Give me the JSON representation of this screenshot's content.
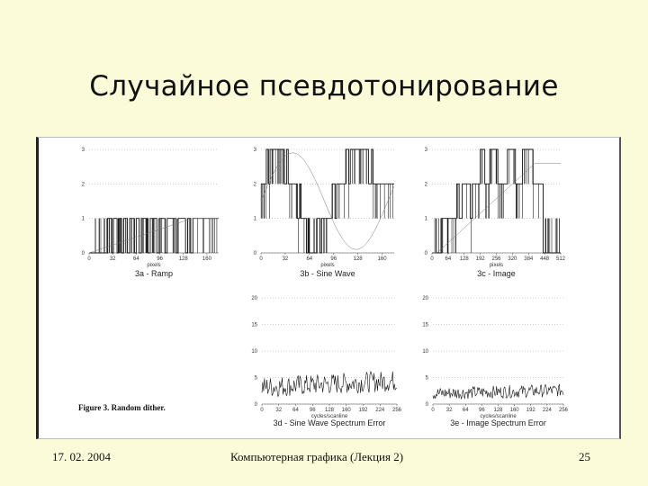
{
  "slide": {
    "title": "Случайное псевдотонирование",
    "footer": {
      "date": "17. 02. 2004",
      "course": "Компьютерная графика (Лекция 2)",
      "page": "25"
    }
  },
  "figure": {
    "caption": "Figure 3. Random dither."
  },
  "chart_data": [
    {
      "type": "line",
      "title": "3a - Ramp",
      "xlabel": "pixels",
      "xticks": [
        "0",
        "32",
        "64",
        "96",
        "128",
        "160"
      ],
      "yticks": [
        "0",
        "1",
        "2",
        "3"
      ],
      "xlim": [
        0,
        176
      ],
      "ylim": [
        0,
        3
      ],
      "series": [
        {
          "values": [
            [
              0,
              0
            ],
            [
              24,
              0
            ],
            [
              25,
              1
            ],
            [
              30,
              1
            ],
            [
              31,
              0
            ],
            [
              33,
              1
            ],
            [
              38,
              0
            ],
            [
              40,
              1
            ],
            [
              44,
              0
            ],
            [
              47,
              1
            ],
            [
              52,
              0
            ],
            [
              55,
              1
            ],
            [
              61,
              0
            ],
            [
              64,
              1
            ],
            [
              68,
              0
            ],
            [
              71,
              1
            ],
            [
              80,
              0
            ],
            [
              83,
              1
            ],
            [
              92,
              0
            ],
            [
              95,
              1
            ],
            [
              103,
              0
            ],
            [
              106,
              1
            ],
            [
              118,
              0
            ],
            [
              121,
              1
            ],
            [
              131,
              0
            ],
            [
              134,
              1
            ],
            [
              138,
              0
            ],
            [
              141,
              1
            ],
            [
              176,
              1
            ]
          ]
        }
      ]
    },
    {
      "type": "line",
      "title": "3b - Sine Wave",
      "xlabel": "pixels",
      "xticks": [
        "0",
        "32",
        "64",
        "96",
        "128",
        "160"
      ],
      "yticks": [
        "0",
        "1",
        "2",
        "3"
      ],
      "xlim": [
        0,
        176
      ],
      "ylim": [
        0,
        3
      ],
      "series": [
        {
          "values": [
            [
              0,
              2
            ],
            [
              6,
              2
            ],
            [
              7,
              3
            ],
            [
              10,
              2
            ],
            [
              12,
              3
            ],
            [
              30,
              3
            ],
            [
              31,
              2
            ],
            [
              34,
              3
            ],
            [
              36,
              2
            ],
            [
              46,
              2
            ],
            [
              48,
              1
            ],
            [
              51,
              2
            ],
            [
              53,
              1
            ],
            [
              58,
              1
            ],
            [
              60,
              0
            ],
            [
              62,
              1
            ],
            [
              64,
              0
            ],
            [
              72,
              0
            ],
            [
              74,
              1
            ],
            [
              78,
              0
            ],
            [
              80,
              1
            ],
            [
              92,
              1
            ],
            [
              94,
              2
            ],
            [
              98,
              1
            ],
            [
              100,
              2
            ],
            [
              110,
              2
            ],
            [
              112,
              3
            ],
            [
              116,
              2
            ],
            [
              118,
              3
            ],
            [
              140,
              3
            ],
            [
              142,
              2
            ],
            [
              146,
              3
            ],
            [
              148,
              2
            ],
            [
              176,
              2
            ]
          ]
        }
      ]
    },
    {
      "type": "line",
      "title": "3c - Image",
      "xlabel": "pixels",
      "xticks": [
        "0",
        "64",
        "128",
        "192",
        "256",
        "320",
        "384",
        "448",
        "512"
      ],
      "yticks": [
        "0",
        "1",
        "2",
        "3"
      ],
      "xlim": [
        0,
        512
      ],
      "ylim": [
        0,
        3
      ],
      "series": [
        {
          "values": [
            [
              0,
              0
            ],
            [
              36,
              0
            ],
            [
              38,
              1
            ],
            [
              60,
              1
            ],
            [
              62,
              0
            ],
            [
              64,
              1
            ],
            [
              96,
              1
            ],
            [
              98,
              2
            ],
            [
              108,
              1
            ],
            [
              120,
              2
            ],
            [
              150,
              2
            ],
            [
              152,
              1
            ],
            [
              160,
              2
            ],
            [
              190,
              2
            ],
            [
              192,
              3
            ],
            [
              210,
              2
            ],
            [
              230,
              3
            ],
            [
              260,
              3
            ],
            [
              262,
              2
            ],
            [
              300,
              3
            ],
            [
              330,
              3
            ],
            [
              332,
              2
            ],
            [
              360,
              3
            ],
            [
              400,
              3
            ],
            [
              402,
              2
            ],
            [
              440,
              2
            ],
            [
              442,
              0
            ],
            [
              512,
              0
            ]
          ]
        }
      ]
    },
    {
      "type": "line",
      "title": "3d - Sine Wave Spectrum Error",
      "xlabel": "cycles/scanline",
      "xticks": [
        "0",
        "32",
        "64",
        "96",
        "128",
        "160",
        "192",
        "224",
        "256"
      ],
      "yticks": [
        "0",
        "5",
        "10",
        "15",
        "20"
      ],
      "xlim": [
        0,
        256
      ],
      "ylim": [
        0,
        20
      ]
    },
    {
      "type": "line",
      "title": "3e - Image Spectrum Error",
      "xlabel": "cycles/scanline",
      "xticks": [
        "0",
        "32",
        "64",
        "96",
        "128",
        "160",
        "192",
        "224",
        "256"
      ],
      "yticks": [
        "0",
        "5",
        "10",
        "15",
        "20"
      ],
      "xlim": [
        0,
        256
      ],
      "ylim": [
        0,
        20
      ]
    }
  ]
}
